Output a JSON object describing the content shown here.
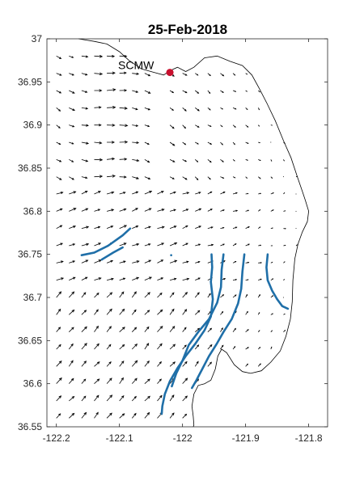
{
  "chart_data": {
    "type": "map",
    "title": "25-Feb-2018",
    "xlim": [
      -122.215,
      -121.77
    ],
    "ylim": [
      36.55,
      37.0
    ],
    "x_ticks": [
      -122.2,
      -122.1,
      -122.0,
      -121.9,
      -121.8
    ],
    "x_tick_labels": [
      "-122.2",
      "-122.1",
      "-122",
      "-121.9",
      "-121.8"
    ],
    "y_ticks": [
      36.55,
      36.6,
      36.65,
      36.7,
      36.75,
      36.8,
      36.85,
      36.9,
      36.95,
      37.0
    ],
    "y_tick_labels": [
      "36.55",
      "36.6",
      "36.65",
      "36.7",
      "36.75",
      "36.8",
      "36.85",
      "36.9",
      "36.95",
      "37"
    ],
    "grid": false,
    "station": {
      "label": "SCMW",
      "lon": -122.02,
      "lat": 36.961,
      "color": "#c8102e"
    },
    "coastline": [
      [
        -122.165,
        37.0
      ],
      [
        -122.14,
        36.997
      ],
      [
        -122.12,
        36.994
      ],
      [
        -122.1,
        36.985
      ],
      [
        -122.085,
        36.975
      ],
      [
        -122.065,
        36.965
      ],
      [
        -122.045,
        36.961
      ],
      [
        -122.03,
        36.958
      ],
      [
        -122.02,
        36.963
      ],
      [
        -122.008,
        36.967
      ],
      [
        -121.995,
        36.962
      ],
      [
        -121.982,
        36.967
      ],
      [
        -121.965,
        36.978
      ],
      [
        -121.945,
        36.98
      ],
      [
        -121.925,
        36.974
      ],
      [
        -121.905,
        36.969
      ],
      [
        -121.89,
        36.958
      ],
      [
        -121.878,
        36.942
      ],
      [
        -121.866,
        36.925
      ],
      [
        -121.853,
        36.905
      ],
      [
        -121.84,
        36.882
      ],
      [
        -121.828,
        36.862
      ],
      [
        -121.818,
        36.84
      ],
      [
        -121.81,
        36.823
      ],
      [
        -121.805,
        36.812
      ],
      [
        -121.8,
        36.8
      ],
      [
        -121.802,
        36.788
      ],
      [
        -121.81,
        36.776
      ],
      [
        -121.817,
        36.762
      ],
      [
        -121.822,
        36.745
      ],
      [
        -121.825,
        36.72
      ],
      [
        -121.826,
        36.695
      ],
      [
        -121.829,
        36.675
      ],
      [
        -121.836,
        36.655
      ],
      [
        -121.845,
        36.638
      ],
      [
        -121.86,
        36.625
      ],
      [
        -121.875,
        36.615
      ],
      [
        -121.892,
        36.612
      ],
      [
        -121.905,
        36.614
      ],
      [
        -121.918,
        36.622
      ],
      [
        -121.93,
        36.636
      ],
      [
        -121.938,
        36.64
      ],
      [
        -121.944,
        36.632
      ],
      [
        -121.948,
        36.617
      ],
      [
        -121.955,
        36.604
      ],
      [
        -121.965,
        36.6
      ],
      [
        -121.975,
        36.598
      ],
      [
        -121.982,
        36.588
      ],
      [
        -121.985,
        36.574
      ],
      [
        -121.983,
        36.562
      ],
      [
        -121.982,
        36.552
      ],
      [
        -121.983,
        36.55
      ]
    ],
    "series": [
      {
        "color": "#1f6fa8",
        "points": [
          [
            -122.16,
            36.749
          ],
          [
            -122.14,
            36.752
          ],
          [
            -122.118,
            36.76
          ],
          [
            -122.095,
            36.772
          ],
          [
            -122.083,
            36.78
          ]
        ]
      },
      {
        "color": "#1f6fa8",
        "points": [
          [
            -122.128,
            36.744
          ],
          [
            -122.11,
            36.752
          ],
          [
            -122.095,
            36.758
          ]
        ]
      },
      {
        "color": "#1f6fa8",
        "points": [
          [
            -121.954,
            36.75
          ],
          [
            -121.953,
            36.735
          ],
          [
            -121.955,
            36.718
          ],
          [
            -121.952,
            36.698
          ],
          [
            -121.955,
            36.678
          ],
          [
            -121.965,
            36.662
          ],
          [
            -121.98,
            36.646
          ],
          [
            -121.995,
            36.632
          ],
          [
            -122.008,
            36.618
          ],
          [
            -122.02,
            36.603
          ],
          [
            -122.028,
            36.588
          ],
          [
            -122.032,
            36.574
          ],
          [
            -122.033,
            36.565
          ]
        ]
      },
      {
        "color": "#1f6fa8",
        "points": [
          [
            -121.935,
            36.75
          ],
          [
            -121.938,
            36.732
          ],
          [
            -121.939,
            36.712
          ],
          [
            -121.945,
            36.694
          ],
          [
            -121.958,
            36.675
          ],
          [
            -121.975,
            36.66
          ],
          [
            -121.99,
            36.645
          ],
          [
            -122.0,
            36.627
          ],
          [
            -122.01,
            36.612
          ],
          [
            -122.017,
            36.597
          ]
        ]
      },
      {
        "color": "#1f6fa8",
        "points": [
          [
            -121.902,
            36.75
          ],
          [
            -121.905,
            36.73
          ],
          [
            -121.907,
            36.71
          ],
          [
            -121.912,
            36.693
          ],
          [
            -121.922,
            36.675
          ],
          [
            -121.935,
            36.66
          ],
          [
            -121.946,
            36.646
          ],
          [
            -121.958,
            36.632
          ],
          [
            -121.968,
            36.618
          ],
          [
            -121.978,
            36.604
          ],
          [
            -121.985,
            36.595
          ]
        ]
      },
      {
        "color": "#1f6fa8",
        "points": [
          [
            -121.865,
            36.75
          ],
          [
            -121.867,
            36.735
          ],
          [
            -121.865,
            36.72
          ],
          [
            -121.858,
            36.708
          ],
          [
            -121.85,
            36.698
          ],
          [
            -121.842,
            36.69
          ],
          [
            -121.833,
            36.687
          ]
        ]
      }
    ],
    "marker": {
      "lon": -122.018,
      "lat": 36.749,
      "color": "#1f6fa8"
    },
    "vector_field": {
      "lons": [
        -122.2,
        -122.18,
        -122.16,
        -122.14,
        -122.12,
        -122.1,
        -122.08,
        -122.06,
        -122.04,
        -122.02,
        -122.0,
        -121.98,
        -121.96,
        -121.94,
        -121.92,
        -121.9,
        -121.88,
        -121.86,
        -121.84,
        -121.82,
        -121.8
      ],
      "lats": [
        36.56,
        36.58,
        36.6,
        36.62,
        36.64,
        36.66,
        36.68,
        36.7,
        36.72,
        36.74,
        36.76,
        36.78,
        36.8,
        36.82,
        36.84,
        36.86,
        36.88,
        36.9,
        36.92,
        36.94,
        36.96,
        36.98
      ]
    }
  }
}
